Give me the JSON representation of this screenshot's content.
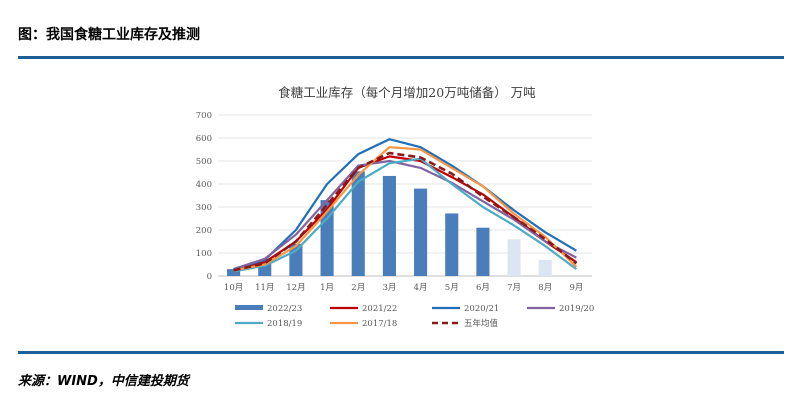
{
  "figure": {
    "title": "图：我国食糖工业库存及推测",
    "source": "来源：WIND，中信建投期货"
  },
  "chart_data": {
    "type": "bar",
    "title": "食糖工业库存（每个月增加20万吨储备） 万吨",
    "categories": [
      "10月",
      "11月",
      "12月",
      "1月",
      "2月",
      "3月",
      "4月",
      "5月",
      "6月",
      "7月",
      "8月",
      "9月"
    ],
    "ylim": [
      0,
      700
    ],
    "yticks": [
      "0",
      "100",
      "200",
      "300",
      "400",
      "500",
      "600",
      "700"
    ],
    "bar_series": {
      "name": "2022/23",
      "values": [
        30,
        60,
        140,
        330,
        455,
        435,
        380,
        272,
        210,
        160,
        70,
        null
      ],
      "projected_from_index": 9,
      "color": "#4a7ebb",
      "projected_color": "#dce6f2"
    },
    "line_series": [
      {
        "name": "2021/22",
        "color": "#c00000",
        "dash": false,
        "values": [
          25,
          60,
          150,
          290,
          470,
          520,
          500,
          430,
          355,
          255,
          150,
          60
        ]
      },
      {
        "name": "2020/21",
        "color": "#1f6fb9",
        "dash": false,
        "values": [
          30,
          70,
          200,
          400,
          530,
          595,
          560,
          480,
          390,
          285,
          190,
          110
        ]
      },
      {
        "name": "2019/20",
        "color": "#8064a2",
        "dash": false,
        "values": [
          30,
          75,
          180,
          330,
          480,
          500,
          470,
          405,
          325,
          245,
          150,
          80
        ]
      },
      {
        "name": "2018/19",
        "color": "#4bacc6",
        "dash": false,
        "values": [
          20,
          45,
          110,
          250,
          410,
          490,
          510,
          400,
          300,
          220,
          130,
          30
        ]
      },
      {
        "name": "2017/18",
        "color": "#f79646",
        "dash": false,
        "values": [
          25,
          50,
          130,
          280,
          440,
          560,
          550,
          470,
          390,
          270,
          170,
          40
        ]
      },
      {
        "name": "五年均值",
        "color": "#8b1a1a",
        "dash": true,
        "values": [
          25,
          55,
          150,
          310,
          470,
          535,
          515,
          445,
          345,
          255,
          160,
          55
        ]
      }
    ],
    "legend_order": [
      "2022/23",
      "2021/22",
      "2020/21",
      "2019/20",
      "2018/19",
      "2017/18",
      "五年均值"
    ]
  }
}
